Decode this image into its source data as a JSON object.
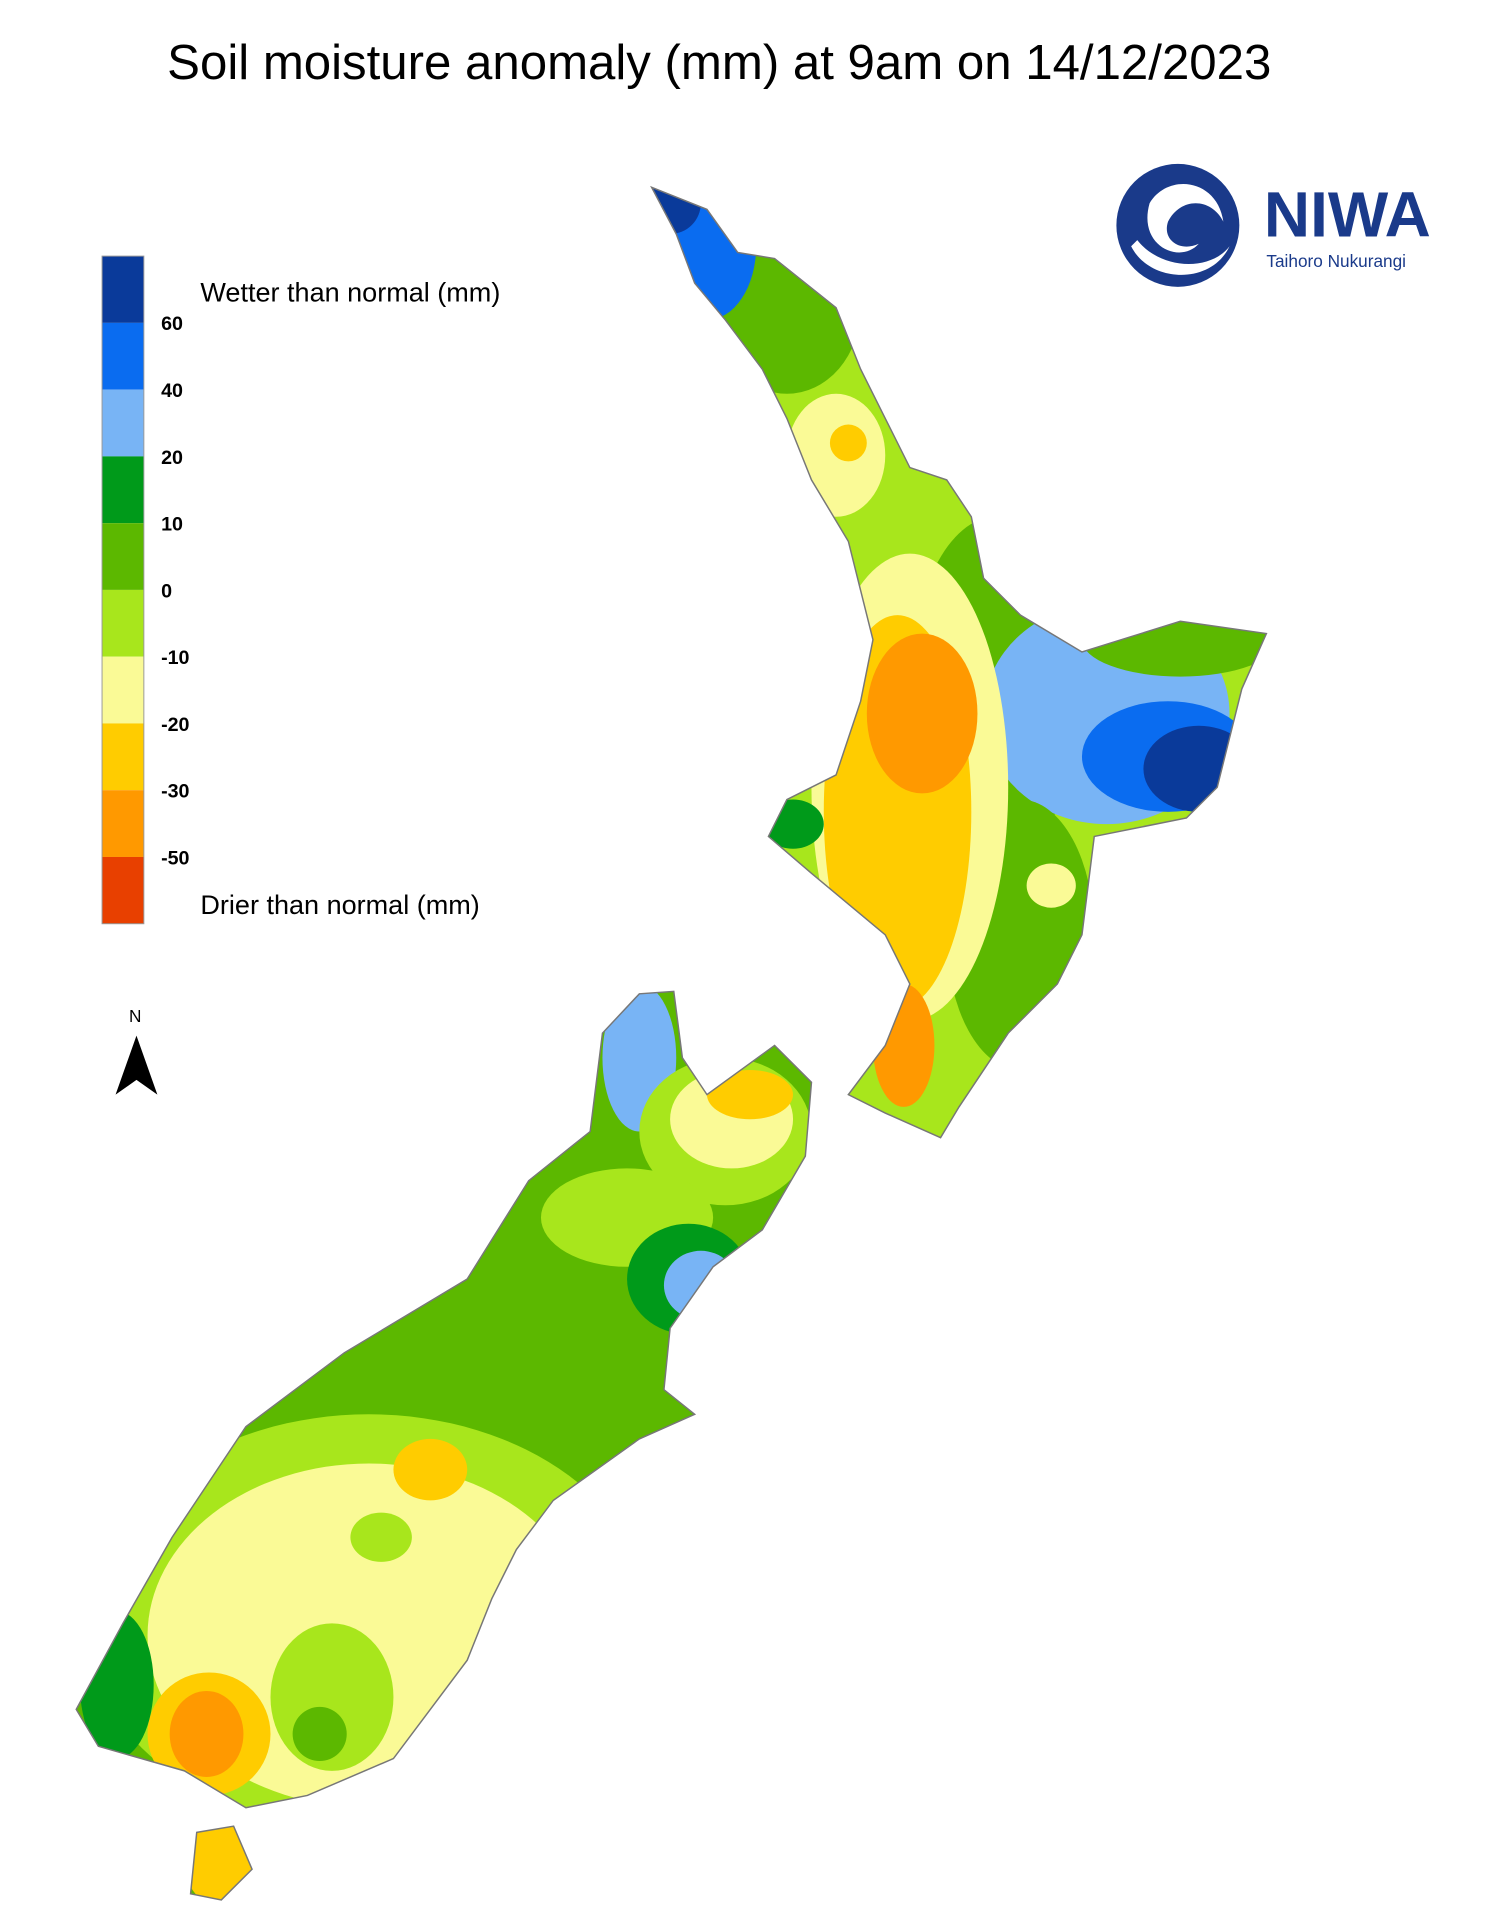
{
  "title": "Soil moisture anomaly (mm) at 9am on 14/12/2023",
  "legend": {
    "wetter_label": "Wetter than normal (mm)",
    "drier_label": "Drier than normal (mm)",
    "colors": [
      "#0a3a9a",
      "#0a6cf0",
      "#78b4f5",
      "#009a1a",
      "#5cb800",
      "#a8e61c",
      "#fafa96",
      "#ffcc00",
      "#ff9900",
      "#e84000"
    ],
    "ticks": [
      60,
      40,
      20,
      10,
      0,
      -10,
      -20,
      -30,
      -50
    ]
  },
  "logo": {
    "name": "NIWA",
    "subtitle": "Taihoro Nukurangi"
  },
  "north_label": "N"
}
